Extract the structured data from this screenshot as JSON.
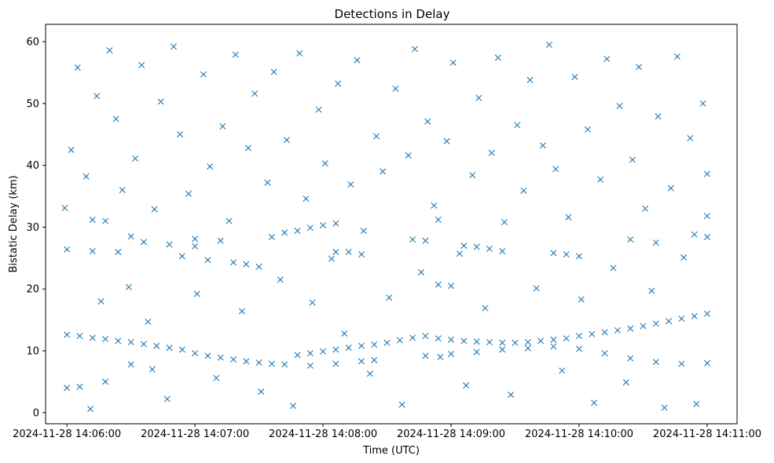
{
  "chart_data": {
    "type": "scatter",
    "title": "Detections in Delay",
    "xlabel": "Time (UTC)",
    "ylabel": "Bistatic Delay (km)",
    "x_ticks": [
      "2024-11-28 14:06:00",
      "2024-11-28 14:07:00",
      "2024-11-28 14:08:00",
      "2024-11-28 14:09:00",
      "2024-11-28 14:10:00",
      "2024-11-28 14:11:00"
    ],
    "y_ticks": [
      0,
      10,
      20,
      30,
      40,
      50,
      60
    ],
    "xlim": [
      "2024-11-28 14:05:50",
      "2024-11-28 14:11:14"
    ],
    "ylim": [
      -1.8,
      62.8
    ],
    "marker": "x",
    "color": "#1f77b4",
    "grid": false,
    "series": [
      {
        "points": [
          [
            "2024-11-28 14:06:00",
            12.6
          ],
          [
            "2024-11-28 14:06:06",
            12.4
          ],
          [
            "2024-11-28 14:06:12",
            12.1
          ],
          [
            "2024-11-28 14:06:18",
            11.9
          ],
          [
            "2024-11-28 14:06:24",
            11.6
          ],
          [
            "2024-11-28 14:06:30",
            11.4
          ],
          [
            "2024-11-28 14:06:36",
            11.1
          ],
          [
            "2024-11-28 14:06:42",
            10.8
          ],
          [
            "2024-11-28 14:06:48",
            10.5
          ],
          [
            "2024-11-28 14:06:54",
            10.2
          ],
          [
            "2024-11-28 14:07:00",
            9.6
          ],
          [
            "2024-11-28 14:07:06",
            9.2
          ],
          [
            "2024-11-28 14:07:12",
            8.9
          ],
          [
            "2024-11-28 14:07:18",
            8.6
          ],
          [
            "2024-11-28 14:07:24",
            8.3
          ],
          [
            "2024-11-28 14:07:30",
            8.1
          ],
          [
            "2024-11-28 14:07:36",
            7.9
          ],
          [
            "2024-11-28 14:07:42",
            7.8
          ],
          [
            "2024-11-28 14:07:48",
            9.3
          ],
          [
            "2024-11-28 14:07:54",
            9.6
          ],
          [
            "2024-11-28 14:08:00",
            9.9
          ],
          [
            "2024-11-28 14:08:06",
            10.2
          ],
          [
            "2024-11-28 14:08:12",
            10.5
          ],
          [
            "2024-11-28 14:08:18",
            10.8
          ],
          [
            "2024-11-28 14:08:24",
            11.0
          ],
          [
            "2024-11-28 14:08:30",
            11.3
          ],
          [
            "2024-11-28 14:08:36",
            11.7
          ],
          [
            "2024-11-28 14:08:42",
            12.1
          ],
          [
            "2024-11-28 14:08:48",
            12.4
          ],
          [
            "2024-11-28 14:08:54",
            12.0
          ],
          [
            "2024-11-28 14:09:00",
            11.8
          ],
          [
            "2024-11-28 14:09:06",
            11.6
          ],
          [
            "2024-11-28 14:09:12",
            11.5
          ],
          [
            "2024-11-28 14:09:18",
            11.4
          ],
          [
            "2024-11-28 14:09:24",
            11.3
          ],
          [
            "2024-11-28 14:09:30",
            11.3
          ],
          [
            "2024-11-28 14:09:36",
            11.4
          ],
          [
            "2024-11-28 14:09:42",
            11.6
          ],
          [
            "2024-11-28 14:09:48",
            11.8
          ],
          [
            "2024-11-28 14:09:54",
            12.0
          ],
          [
            "2024-11-28 14:10:00",
            12.4
          ],
          [
            "2024-11-28 14:10:06",
            12.7
          ],
          [
            "2024-11-28 14:10:12",
            13.0
          ],
          [
            "2024-11-28 14:10:18",
            13.3
          ],
          [
            "2024-11-28 14:10:24",
            13.6
          ],
          [
            "2024-11-28 14:10:30",
            14.0
          ],
          [
            "2024-11-28 14:10:36",
            14.4
          ],
          [
            "2024-11-28 14:10:42",
            14.8
          ],
          [
            "2024-11-28 14:10:48",
            15.2
          ],
          [
            "2024-11-28 14:10:54",
            15.6
          ],
          [
            "2024-11-28 14:11:00",
            16.0
          ],
          [
            "2024-11-28 14:06:00",
            4.0
          ],
          [
            "2024-11-28 14:06:06",
            4.2
          ],
          [
            "2024-11-28 14:06:18",
            5.0
          ],
          [
            "2024-11-28 14:06:30",
            7.8
          ],
          [
            "2024-11-28 14:06:40",
            7.0
          ],
          [
            "2024-11-28 14:07:54",
            7.6
          ],
          [
            "2024-11-28 14:08:06",
            7.9
          ],
          [
            "2024-11-28 14:08:18",
            8.3
          ],
          [
            "2024-11-28 14:08:24",
            8.5
          ],
          [
            "2024-11-28 14:08:48",
            9.2
          ],
          [
            "2024-11-28 14:09:00",
            9.5
          ],
          [
            "2024-11-28 14:09:12",
            9.8
          ],
          [
            "2024-11-28 14:09:24",
            10.2
          ],
          [
            "2024-11-28 14:09:36",
            10.4
          ],
          [
            "2024-11-28 14:09:48",
            10.7
          ],
          [
            "2024-11-28 14:10:00",
            10.3
          ],
          [
            "2024-11-28 14:10:12",
            9.6
          ],
          [
            "2024-11-28 14:10:24",
            8.8
          ],
          [
            "2024-11-28 14:10:36",
            8.2
          ],
          [
            "2024-11-28 14:10:48",
            7.9
          ],
          [
            "2024-11-28 14:11:00",
            8.0
          ],
          [
            "2024-11-28 14:06:00",
            26.4
          ],
          [
            "2024-11-28 14:06:12",
            26.1
          ],
          [
            "2024-11-28 14:06:24",
            26.0
          ],
          [
            "2024-11-28 14:06:36",
            27.6
          ],
          [
            "2024-11-28 14:06:48",
            27.2
          ],
          [
            "2024-11-28 14:06:54",
            25.3
          ],
          [
            "2024-11-28 14:07:00",
            26.9
          ],
          [
            "2024-11-28 14:07:06",
            24.7
          ],
          [
            "2024-11-28 14:07:18",
            24.3
          ],
          [
            "2024-11-28 14:07:24",
            24.0
          ],
          [
            "2024-11-28 14:07:36",
            28.4
          ],
          [
            "2024-11-28 14:07:42",
            29.1
          ],
          [
            "2024-11-28 14:07:48",
            29.4
          ],
          [
            "2024-11-28 14:07:54",
            29.9
          ],
          [
            "2024-11-28 14:08:00",
            30.3
          ],
          [
            "2024-11-28 14:08:06",
            30.6
          ],
          [
            "2024-11-28 14:08:06",
            26.0
          ],
          [
            "2024-11-28 14:08:12",
            26.0
          ],
          [
            "2024-11-28 14:08:18",
            25.6
          ],
          [
            "2024-11-28 14:06:12",
            31.2
          ],
          [
            "2024-11-28 14:06:18",
            31.0
          ],
          [
            "2024-11-28 14:06:30",
            28.5
          ],
          [
            "2024-11-28 14:07:00",
            28.1
          ],
          [
            "2024-11-28 14:07:12",
            27.8
          ],
          [
            "2024-11-28 14:07:30",
            23.6
          ],
          [
            "2024-11-28 14:08:42",
            28.0
          ],
          [
            "2024-11-28 14:08:48",
            27.8
          ],
          [
            "2024-11-28 14:08:54",
            31.2
          ],
          [
            "2024-11-28 14:08:54",
            20.7
          ],
          [
            "2024-11-28 14:09:00",
            20.5
          ],
          [
            "2024-11-28 14:09:06",
            27.0
          ],
          [
            "2024-11-28 14:09:12",
            26.8
          ],
          [
            "2024-11-28 14:09:18",
            26.5
          ],
          [
            "2024-11-28 14:09:24",
            26.1
          ],
          [
            "2024-11-28 14:09:48",
            25.8
          ],
          [
            "2024-11-28 14:09:54",
            25.6
          ],
          [
            "2024-11-28 14:10:00",
            25.3
          ],
          [
            "2024-11-28 14:10:24",
            28.0
          ],
          [
            "2024-11-28 14:10:36",
            27.5
          ],
          [
            "2024-11-28 14:10:54",
            28.8
          ],
          [
            "2024-11-28 14:11:00",
            28.4
          ],
          [
            "2024-11-28 14:05:59",
            33.1
          ],
          [
            "2024-11-28 14:06:02",
            42.5
          ],
          [
            "2024-11-28 14:06:05",
            55.8
          ],
          [
            "2024-11-28 14:06:09",
            38.2
          ],
          [
            "2024-11-28 14:06:11",
            0.6
          ],
          [
            "2024-11-28 14:06:14",
            51.2
          ],
          [
            "2024-11-28 14:06:16",
            18.0
          ],
          [
            "2024-11-28 14:06:20",
            58.6
          ],
          [
            "2024-11-28 14:06:23",
            47.5
          ],
          [
            "2024-11-28 14:06:26",
            36.0
          ],
          [
            "2024-11-28 14:06:29",
            20.3
          ],
          [
            "2024-11-28 14:06:32",
            41.1
          ],
          [
            "2024-11-28 14:06:35",
            56.2
          ],
          [
            "2024-11-28 14:06:38",
            14.7
          ],
          [
            "2024-11-28 14:06:41",
            32.9
          ],
          [
            "2024-11-28 14:06:44",
            50.3
          ],
          [
            "2024-11-28 14:06:47",
            2.2
          ],
          [
            "2024-11-28 14:06:50",
            59.2
          ],
          [
            "2024-11-28 14:06:53",
            45.0
          ],
          [
            "2024-11-28 14:06:57",
            35.4
          ],
          [
            "2024-11-28 14:07:01",
            19.2
          ],
          [
            "2024-11-28 14:07:04",
            54.7
          ],
          [
            "2024-11-28 14:07:07",
            39.8
          ],
          [
            "2024-11-28 14:07:10",
            5.6
          ],
          [
            "2024-11-28 14:07:13",
            46.3
          ],
          [
            "2024-11-28 14:07:16",
            31.0
          ],
          [
            "2024-11-28 14:07:19",
            57.9
          ],
          [
            "2024-11-28 14:07:22",
            16.4
          ],
          [
            "2024-11-28 14:07:25",
            42.8
          ],
          [
            "2024-11-28 14:07:28",
            51.6
          ],
          [
            "2024-11-28 14:07:31",
            3.4
          ],
          [
            "2024-11-28 14:07:34",
            37.2
          ],
          [
            "2024-11-28 14:07:37",
            55.1
          ],
          [
            "2024-11-28 14:07:40",
            21.5
          ],
          [
            "2024-11-28 14:07:43",
            44.1
          ],
          [
            "2024-11-28 14:07:46",
            1.1
          ],
          [
            "2024-11-28 14:07:49",
            58.1
          ],
          [
            "2024-11-28 14:07:52",
            34.6
          ],
          [
            "2024-11-28 14:07:55",
            17.8
          ],
          [
            "2024-11-28 14:07:58",
            49.0
          ],
          [
            "2024-11-28 14:08:01",
            40.3
          ],
          [
            "2024-11-28 14:08:04",
            24.9
          ],
          [
            "2024-11-28 14:08:07",
            53.2
          ],
          [
            "2024-11-28 14:08:10",
            12.8
          ],
          [
            "2024-11-28 14:08:13",
            36.9
          ],
          [
            "2024-11-28 14:08:16",
            57.0
          ],
          [
            "2024-11-28 14:08:19",
            29.4
          ],
          [
            "2024-11-28 14:08:22",
            6.3
          ],
          [
            "2024-11-28 14:08:25",
            44.7
          ],
          [
            "2024-11-28 14:08:28",
            39.0
          ],
          [
            "2024-11-28 14:08:31",
            18.6
          ],
          [
            "2024-11-28 14:08:34",
            52.4
          ],
          [
            "2024-11-28 14:08:37",
            1.3
          ],
          [
            "2024-11-28 14:08:40",
            41.6
          ],
          [
            "2024-11-28 14:08:43",
            58.8
          ],
          [
            "2024-11-28 14:08:46",
            22.7
          ],
          [
            "2024-11-28 14:08:49",
            47.1
          ],
          [
            "2024-11-28 14:08:52",
            33.5
          ],
          [
            "2024-11-28 14:08:55",
            9.0
          ],
          [
            "2024-11-28 14:08:58",
            43.9
          ],
          [
            "2024-11-28 14:09:01",
            56.6
          ],
          [
            "2024-11-28 14:09:04",
            25.7
          ],
          [
            "2024-11-28 14:09:07",
            4.4
          ],
          [
            "2024-11-28 14:09:10",
            38.4
          ],
          [
            "2024-11-28 14:09:13",
            50.9
          ],
          [
            "2024-11-28 14:09:16",
            16.9
          ],
          [
            "2024-11-28 14:09:19",
            42.0
          ],
          [
            "2024-11-28 14:09:22",
            57.4
          ],
          [
            "2024-11-28 14:09:25",
            30.8
          ],
          [
            "2024-11-28 14:09:28",
            2.9
          ],
          [
            "2024-11-28 14:09:31",
            46.5
          ],
          [
            "2024-11-28 14:09:34",
            35.9
          ],
          [
            "2024-11-28 14:09:37",
            53.8
          ],
          [
            "2024-11-28 14:09:40",
            20.1
          ],
          [
            "2024-11-28 14:09:43",
            43.2
          ],
          [
            "2024-11-28 14:09:46",
            59.5
          ],
          [
            "2024-11-28 14:09:49",
            39.4
          ],
          [
            "2024-11-28 14:09:52",
            6.8
          ],
          [
            "2024-11-28 14:09:55",
            31.6
          ],
          [
            "2024-11-28 14:09:58",
            54.3
          ],
          [
            "2024-11-28 14:10:01",
            18.3
          ],
          [
            "2024-11-28 14:10:04",
            45.8
          ],
          [
            "2024-11-28 14:10:07",
            1.6
          ],
          [
            "2024-11-28 14:10:10",
            37.7
          ],
          [
            "2024-11-28 14:10:13",
            57.2
          ],
          [
            "2024-11-28 14:10:16",
            23.4
          ],
          [
            "2024-11-28 14:10:19",
            49.6
          ],
          [
            "2024-11-28 14:10:22",
            4.9
          ],
          [
            "2024-11-28 14:10:25",
            40.9
          ],
          [
            "2024-11-28 14:10:28",
            55.9
          ],
          [
            "2024-11-28 14:10:31",
            33.0
          ],
          [
            "2024-11-28 14:10:34",
            19.7
          ],
          [
            "2024-11-28 14:10:37",
            47.9
          ],
          [
            "2024-11-28 14:10:40",
            0.8
          ],
          [
            "2024-11-28 14:10:43",
            36.3
          ],
          [
            "2024-11-28 14:10:46",
            57.6
          ],
          [
            "2024-11-28 14:10:49",
            25.1
          ],
          [
            "2024-11-28 14:10:52",
            44.4
          ],
          [
            "2024-11-28 14:10:55",
            1.4
          ],
          [
            "2024-11-28 14:10:58",
            50.0
          ],
          [
            "2024-11-28 14:11:00",
            31.8
          ],
          [
            "2024-11-28 14:11:00",
            38.6
          ]
        ]
      }
    ]
  }
}
